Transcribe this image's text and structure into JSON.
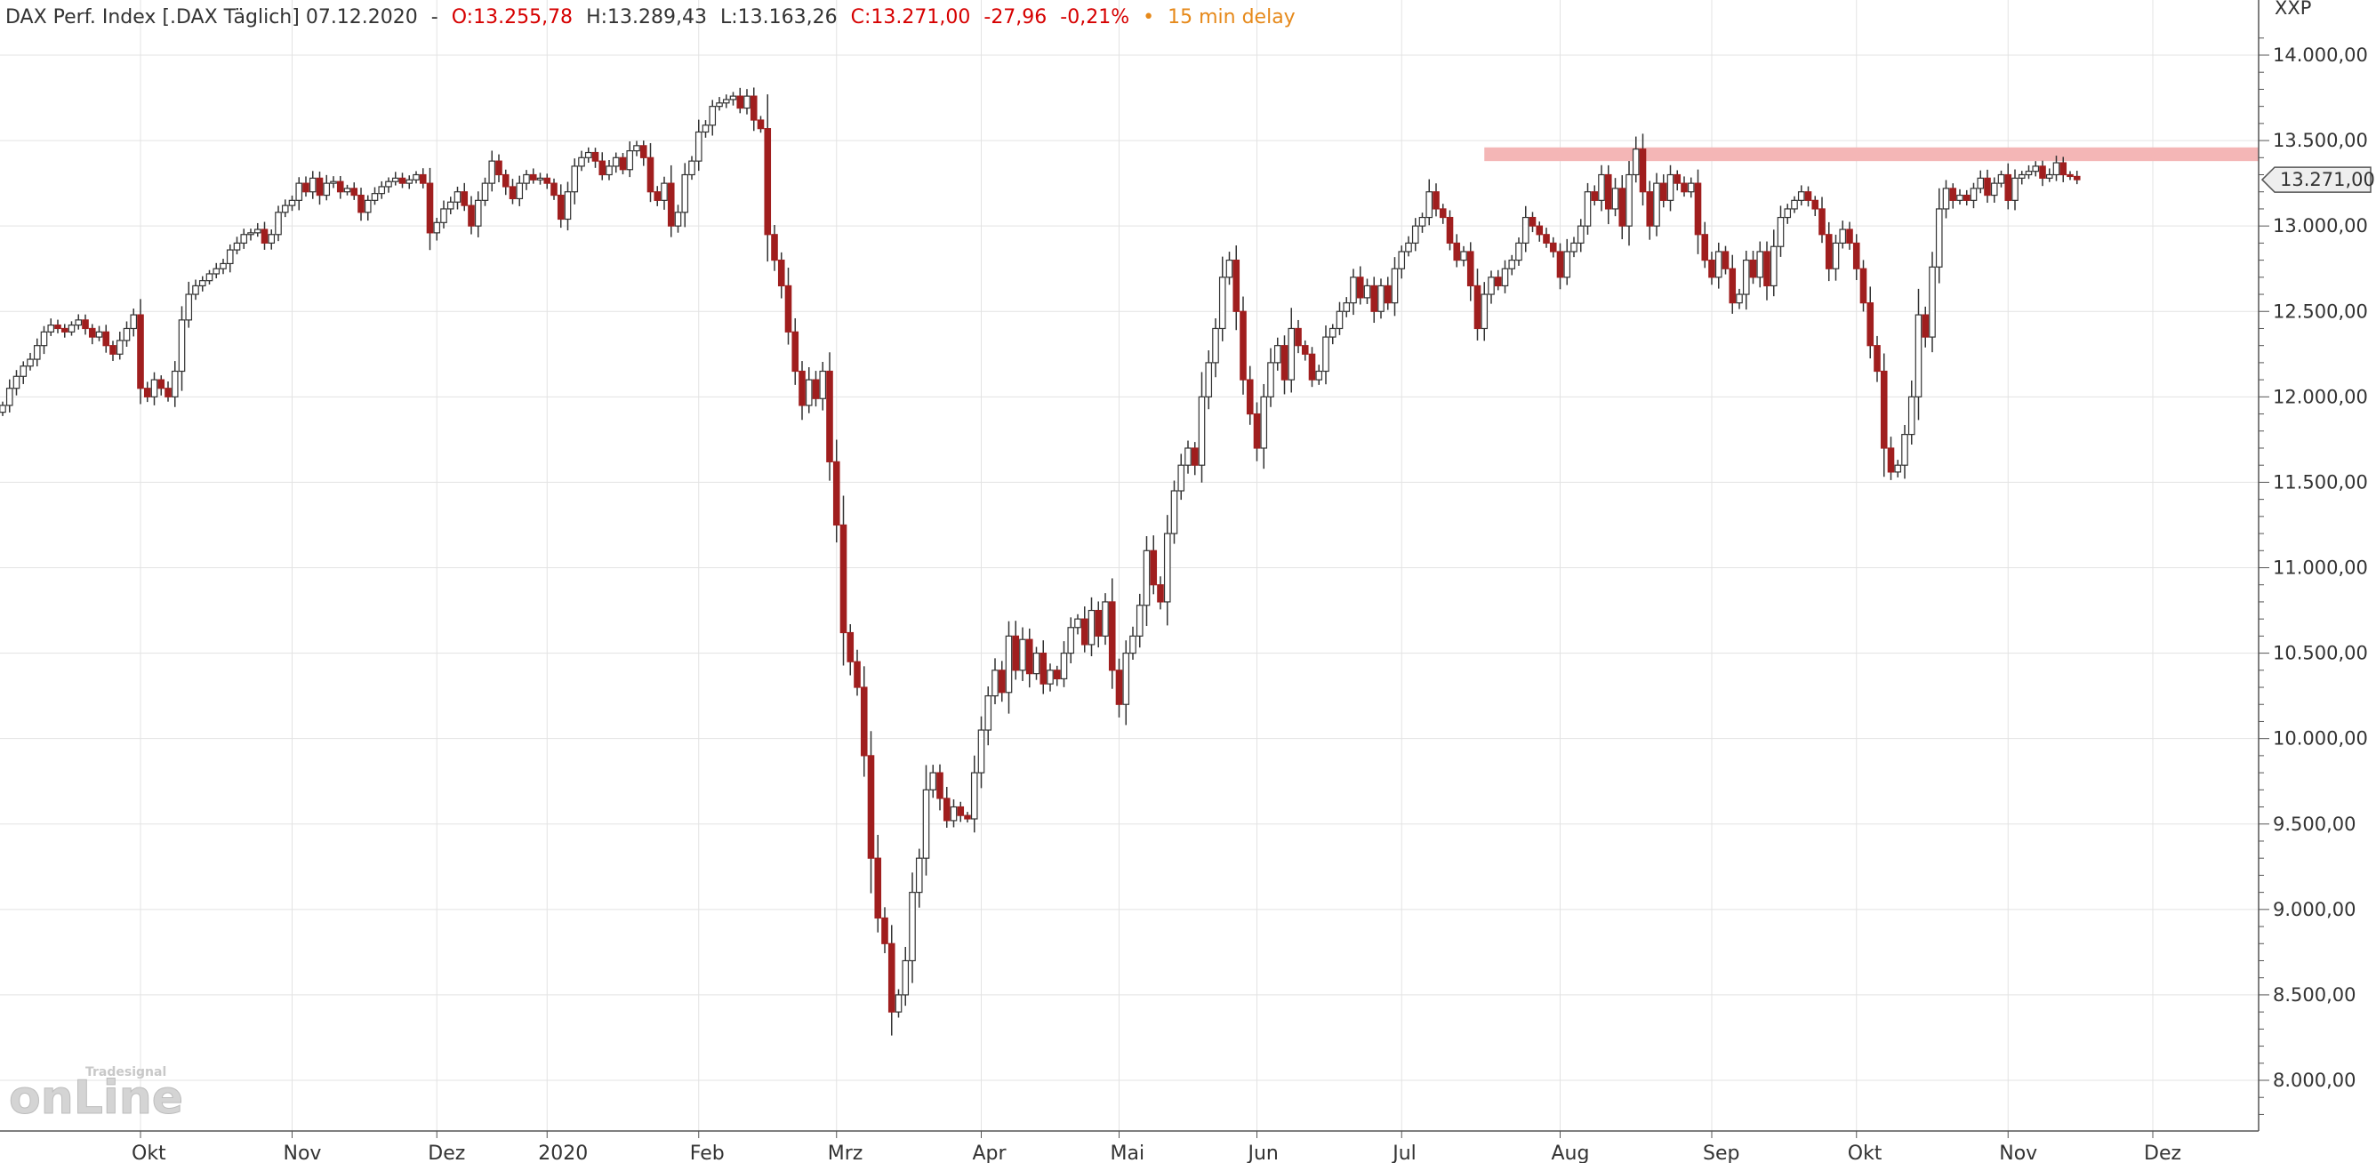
{
  "header": {
    "instrument": "DAX Perf. Index [.DAX Täglich] 07.12.2020",
    "sep": "-",
    "open": "O:13.255,78",
    "high": "H:13.289,43",
    "low": "L:13.163,26",
    "close": "C:13.271,00",
    "change": "-27,96",
    "change_pct": "-0,21%",
    "dot": "•",
    "delay": "15 min delay"
  },
  "colors": {
    "down": "#a01e1e",
    "up": "#ffffff",
    "outline": "#333333",
    "neg": "#d60000",
    "delay": "#e6891a",
    "grid": "#e3e3e3",
    "resistance": "#f4b6b6"
  },
  "chart_data": {
    "type": "candlestick",
    "unit": "XXP",
    "ylim": [
      7700,
      14200
    ],
    "y_ticks": [
      8000,
      8500,
      9000,
      9500,
      10000,
      10500,
      11000,
      11500,
      12000,
      12500,
      13000,
      13500,
      14000
    ],
    "y_tick_labels": [
      "8.000,00",
      "8.500,00",
      "9.000,00",
      "9.500,00",
      "10.000,00",
      "10.500,00",
      "11.000,00",
      "11.500,00",
      "12.000,00",
      "12.500,00",
      "13.000,00",
      "13.500,00",
      "14.000,00"
    ],
    "x_ticks": [
      {
        "label": "Okt",
        "index": 20
      },
      {
        "label": "Nov",
        "index": 42
      },
      {
        "label": "Dez",
        "index": 63
      },
      {
        "label": "2020",
        "index": 79
      },
      {
        "label": "Feb",
        "index": 101
      },
      {
        "label": "Mrz",
        "index": 121
      },
      {
        "label": "Apr",
        "index": 142
      },
      {
        "label": "Mai",
        "index": 162
      },
      {
        "label": "Jun",
        "index": 182
      },
      {
        "label": "Jul",
        "index": 203
      },
      {
        "label": "Aug",
        "index": 226
      },
      {
        "label": "Sep",
        "index": 248
      },
      {
        "label": "Okt",
        "index": 269
      },
      {
        "label": "Nov",
        "index": 291
      },
      {
        "label": "Dez",
        "index": 312
      }
    ],
    "last_price": 13271,
    "last_price_label": "13.271,00",
    "resistance_band": {
      "low": 13380,
      "high": 13460,
      "from_index": 215
    },
    "closes": [
      11950,
      12050,
      12120,
      12180,
      12220,
      12300,
      12380,
      12420,
      12400,
      12380,
      12420,
      12450,
      12400,
      12350,
      12380,
      12300,
      12250,
      12330,
      12400,
      12480,
      12050,
      12000,
      12100,
      12050,
      12000,
      12150,
      12450,
      12600,
      12650,
      12680,
      12720,
      12750,
      12780,
      12860,
      12900,
      12950,
      12960,
      12980,
      12900,
      12950,
      13080,
      13120,
      13150,
      13250,
      13200,
      13280,
      13180,
      13250,
      13260,
      13200,
      13220,
      13180,
      13080,
      13150,
      13190,
      13230,
      13260,
      13280,
      13250,
      13270,
      13300,
      13250,
      12960,
      13020,
      13100,
      13140,
      13200,
      13120,
      13000,
      13150,
      13250,
      13380,
      13300,
      13230,
      13160,
      13250,
      13300,
      13270,
      13280,
      13250,
      13180,
      13040,
      13200,
      13350,
      13400,
      13430,
      13380,
      13300,
      13350,
      13400,
      13330,
      13440,
      13470,
      13400,
      13200,
      13150,
      13250,
      13000,
      13080,
      13300,
      13380,
      13550,
      13590,
      13700,
      13720,
      13740,
      13760,
      13690,
      13760,
      13620,
      13570,
      12950,
      12800,
      12650,
      12380,
      12150,
      11950,
      12100,
      11990,
      12150,
      11620,
      11250,
      10620,
      10450,
      10300,
      9900,
      9300,
      8950,
      8800,
      8400,
      8500,
      8700,
      9100,
      9300,
      9700,
      9800,
      9650,
      9520,
      9600,
      9550,
      9530,
      9800,
      10050,
      10250,
      10400,
      10270,
      10600,
      10400,
      10580,
      10380,
      10500,
      10320,
      10400,
      10350,
      10500,
      10650,
      10700,
      10550,
      10750,
      10600,
      10800,
      10400,
      10200,
      10500,
      10600,
      10780,
      11100,
      10900,
      10800,
      11200,
      11450,
      11600,
      11700,
      11600,
      12000,
      12200,
      12400,
      12700,
      12800,
      12500,
      12100,
      11900,
      11700,
      12000,
      12200,
      12300,
      12100,
      12400,
      12300,
      12250,
      12100,
      12150,
      12350,
      12400,
      12500,
      12550,
      12700,
      12580,
      12650,
      12500,
      12650,
      12550,
      12750,
      12850,
      12900,
      13000,
      13050,
      13200,
      13100,
      13050,
      12900,
      12800,
      12850,
      12650,
      12400,
      12600,
      12700,
      12650,
      12750,
      12800,
      12900,
      13050,
      13000,
      12950,
      12900,
      12850,
      12700,
      12850,
      12900,
      13000,
      13200,
      13150,
      13300,
      13100,
      13220,
      13000,
      13300,
      13450,
      13200,
      13000,
      13250,
      13150,
      13300,
      13250,
      13200,
      13250,
      12950,
      12800,
      12700,
      12850,
      12750,
      12550,
      12600,
      12800,
      12700,
      12850,
      12650,
      12880,
      13050,
      13100,
      13150,
      13200,
      13150,
      13100,
      12950,
      12750,
      12900,
      12980,
      12900,
      12750,
      12550,
      12300,
      12150,
      11700,
      11560,
      11600,
      11780,
      12000,
      12480,
      12350,
      12760,
      13100,
      13220,
      13150,
      13180,
      13150,
      13220,
      13280,
      13180,
      13250,
      13300,
      13150,
      13280,
      13300,
      13320,
      13350,
      13280,
      13300,
      13370,
      13300,
      13290,
      13271
    ]
  }
}
